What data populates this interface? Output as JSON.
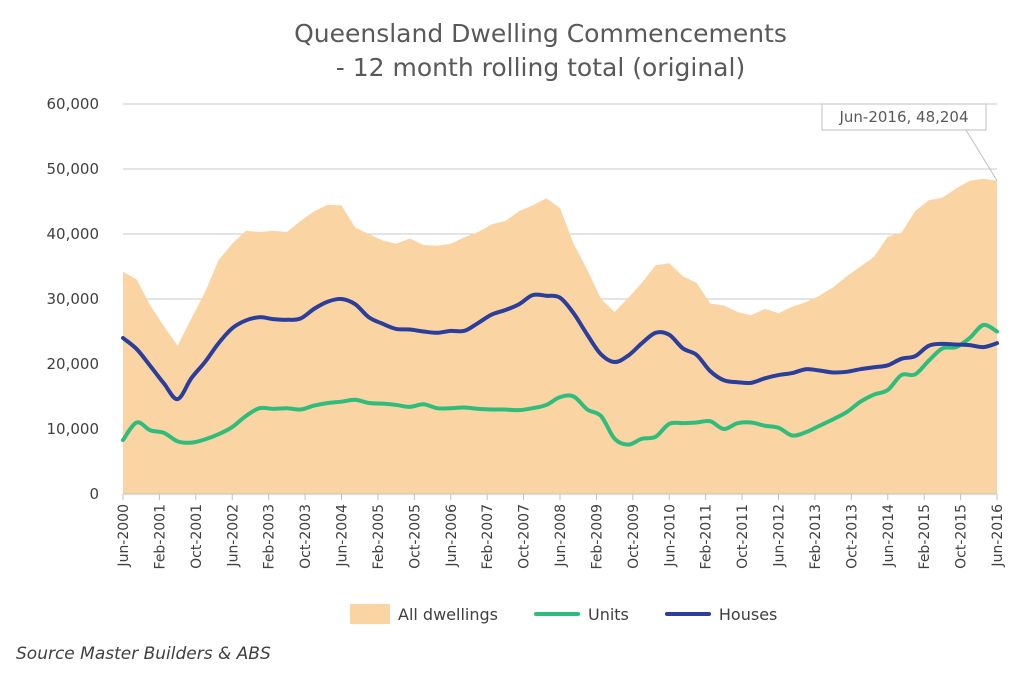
{
  "chart_data": {
    "type": "area",
    "title_line1": "Queensland Dwelling Commencements",
    "title_line2": "- 12 month rolling total (original)",
    "ylim": [
      0,
      60000
    ],
    "yticks": [
      "0",
      "10,000",
      "20,000",
      "30,000",
      "40,000",
      "50,000",
      "60,000"
    ],
    "ytick_values": [
      0,
      10000,
      20000,
      30000,
      40000,
      50000,
      60000
    ],
    "x_start": "Jun-2000",
    "x_end": "Jun-2016",
    "xticks": [
      "Jun-2000",
      "Feb-2001",
      "Oct-2001",
      "Jun-2002",
      "Feb-2003",
      "Oct-2003",
      "Jun-2004",
      "Feb-2005",
      "Oct-2005",
      "Jun-2006",
      "Feb-2007",
      "Oct-2007",
      "Jun-2008",
      "Feb-2009",
      "Oct-2009",
      "Jun-2010",
      "Feb-2011",
      "Oct-2011",
      "Jun-2012",
      "Feb-2013",
      "Oct-2013",
      "Jun-2014",
      "Feb-2015",
      "Oct-2015",
      "Jun-2016"
    ],
    "x_quarters": [
      0,
      0.25,
      0.5,
      0.75,
      1,
      1.25,
      1.5,
      1.75,
      2,
      2.25,
      2.5,
      2.75,
      3,
      3.25,
      3.5,
      3.75,
      4,
      4.25,
      4.5,
      4.75,
      5,
      5.25,
      5.5,
      5.75,
      6,
      6.25,
      6.5,
      6.75,
      7,
      7.25,
      7.5,
      7.75,
      8,
      8.25,
      8.5,
      8.75,
      9,
      9.25,
      9.5,
      9.75,
      10,
      10.25,
      10.5,
      10.75,
      11,
      11.25,
      11.5,
      11.75,
      12,
      12.25,
      12.5,
      12.75,
      13,
      13.25,
      13.5,
      13.75,
      14,
      14.25,
      14.5,
      14.75,
      15,
      15.25,
      15.5,
      15.75,
      16
    ],
    "series": [
      {
        "name": "All dwellings",
        "color": "#fbd4a3",
        "values": [
          34200,
          33000,
          29000,
          25800,
          22800,
          27000,
          31000,
          36000,
          38500,
          40500,
          40300,
          40500,
          40300,
          42000,
          43500,
          44500,
          44400,
          41000,
          40000,
          39000,
          38500,
          39300,
          38300,
          38200,
          38500,
          39500,
          40300,
          41500,
          42000,
          43500,
          44400,
          45500,
          44000,
          38500,
          34500,
          30000,
          28000,
          30200,
          32500,
          35200,
          35500,
          33500,
          32500,
          29300,
          29000,
          28000,
          27500,
          28500,
          27800,
          28800,
          29500,
          30500,
          31800,
          33500,
          35000,
          36500,
          39600,
          40200,
          43500,
          45200,
          45600,
          47000,
          48200,
          48500,
          48204
        ]
      },
      {
        "name": "Units",
        "color": "#2ebd7d",
        "values": [
          8300,
          11000,
          9800,
          9400,
          8100,
          7900,
          8400,
          9200,
          10300,
          12000,
          13200,
          13100,
          13200,
          13000,
          13600,
          14000,
          14200,
          14500,
          14000,
          13900,
          13700,
          13400,
          13800,
          13200,
          13200,
          13300,
          13100,
          13000,
          13000,
          12900,
          13200,
          13700,
          14900,
          15000,
          13000,
          12000,
          8500,
          7600,
          8500,
          8800,
          10800,
          10900,
          11000,
          11200,
          10000,
          10900,
          11000,
          10500,
          10200,
          9000,
          9500,
          10500,
          11500,
          12600,
          14200,
          15300,
          16000,
          18300,
          18400,
          20500,
          22400,
          22600,
          24000,
          26000,
          25000
        ]
      },
      {
        "name": "Houses",
        "color": "#2a3e9c",
        "values": [
          24000,
          22300,
          19700,
          17000,
          14600,
          17800,
          20300,
          23200,
          25500,
          26700,
          27200,
          26900,
          26800,
          27000,
          28500,
          29600,
          30000,
          29200,
          27200,
          26200,
          25400,
          25300,
          25000,
          24800,
          25100,
          25100,
          26300,
          27600,
          28300,
          29200,
          30600,
          30500,
          30200,
          27800,
          24500,
          21500,
          20300,
          21300,
          23200,
          24800,
          24500,
          22400,
          21400,
          18900,
          17500,
          17200,
          17100,
          17800,
          18300,
          18600,
          19200,
          19000,
          18700,
          18800,
          19200,
          19500,
          19800,
          20800,
          21200,
          22800,
          23100,
          23000,
          22900,
          22600,
          23200
        ]
      }
    ],
    "annotation": "Jun-2016, 48,204",
    "source": "Source Master Builders & ABS"
  }
}
